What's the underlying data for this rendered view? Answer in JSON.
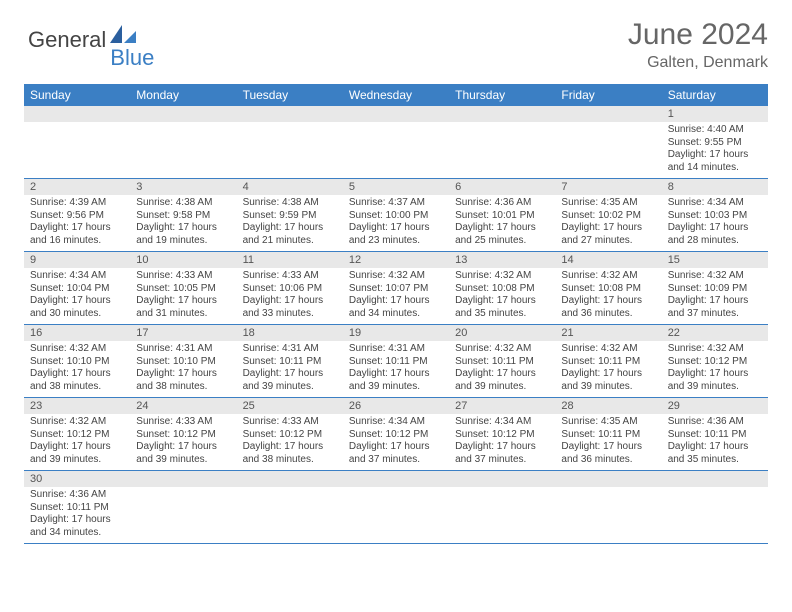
{
  "brand": {
    "part1": "General",
    "part2": "Blue"
  },
  "title": "June 2024",
  "location": "Galten, Denmark",
  "colors": {
    "header_bg": "#3b7fc4",
    "header_text": "#ffffff",
    "daynum_bg": "#e8e8e8",
    "cell_border": "#3b7fc4",
    "text": "#444444",
    "title_color": "#666666"
  },
  "weekdays": [
    "Sunday",
    "Monday",
    "Tuesday",
    "Wednesday",
    "Thursday",
    "Friday",
    "Saturday"
  ],
  "weeks": [
    {
      "days": [
        {
          "num": "",
          "sunrise": "",
          "sunset": "",
          "daylight": ""
        },
        {
          "num": "",
          "sunrise": "",
          "sunset": "",
          "daylight": ""
        },
        {
          "num": "",
          "sunrise": "",
          "sunset": "",
          "daylight": ""
        },
        {
          "num": "",
          "sunrise": "",
          "sunset": "",
          "daylight": ""
        },
        {
          "num": "",
          "sunrise": "",
          "sunset": "",
          "daylight": ""
        },
        {
          "num": "",
          "sunrise": "",
          "sunset": "",
          "daylight": ""
        },
        {
          "num": "1",
          "sunrise": "Sunrise: 4:40 AM",
          "sunset": "Sunset: 9:55 PM",
          "daylight": "Daylight: 17 hours and 14 minutes."
        }
      ]
    },
    {
      "days": [
        {
          "num": "2",
          "sunrise": "Sunrise: 4:39 AM",
          "sunset": "Sunset: 9:56 PM",
          "daylight": "Daylight: 17 hours and 16 minutes."
        },
        {
          "num": "3",
          "sunrise": "Sunrise: 4:38 AM",
          "sunset": "Sunset: 9:58 PM",
          "daylight": "Daylight: 17 hours and 19 minutes."
        },
        {
          "num": "4",
          "sunrise": "Sunrise: 4:38 AM",
          "sunset": "Sunset: 9:59 PM",
          "daylight": "Daylight: 17 hours and 21 minutes."
        },
        {
          "num": "5",
          "sunrise": "Sunrise: 4:37 AM",
          "sunset": "Sunset: 10:00 PM",
          "daylight": "Daylight: 17 hours and 23 minutes."
        },
        {
          "num": "6",
          "sunrise": "Sunrise: 4:36 AM",
          "sunset": "Sunset: 10:01 PM",
          "daylight": "Daylight: 17 hours and 25 minutes."
        },
        {
          "num": "7",
          "sunrise": "Sunrise: 4:35 AM",
          "sunset": "Sunset: 10:02 PM",
          "daylight": "Daylight: 17 hours and 27 minutes."
        },
        {
          "num": "8",
          "sunrise": "Sunrise: 4:34 AM",
          "sunset": "Sunset: 10:03 PM",
          "daylight": "Daylight: 17 hours and 28 minutes."
        }
      ]
    },
    {
      "days": [
        {
          "num": "9",
          "sunrise": "Sunrise: 4:34 AM",
          "sunset": "Sunset: 10:04 PM",
          "daylight": "Daylight: 17 hours and 30 minutes."
        },
        {
          "num": "10",
          "sunrise": "Sunrise: 4:33 AM",
          "sunset": "Sunset: 10:05 PM",
          "daylight": "Daylight: 17 hours and 31 minutes."
        },
        {
          "num": "11",
          "sunrise": "Sunrise: 4:33 AM",
          "sunset": "Sunset: 10:06 PM",
          "daylight": "Daylight: 17 hours and 33 minutes."
        },
        {
          "num": "12",
          "sunrise": "Sunrise: 4:32 AM",
          "sunset": "Sunset: 10:07 PM",
          "daylight": "Daylight: 17 hours and 34 minutes."
        },
        {
          "num": "13",
          "sunrise": "Sunrise: 4:32 AM",
          "sunset": "Sunset: 10:08 PM",
          "daylight": "Daylight: 17 hours and 35 minutes."
        },
        {
          "num": "14",
          "sunrise": "Sunrise: 4:32 AM",
          "sunset": "Sunset: 10:08 PM",
          "daylight": "Daylight: 17 hours and 36 minutes."
        },
        {
          "num": "15",
          "sunrise": "Sunrise: 4:32 AM",
          "sunset": "Sunset: 10:09 PM",
          "daylight": "Daylight: 17 hours and 37 minutes."
        }
      ]
    },
    {
      "days": [
        {
          "num": "16",
          "sunrise": "Sunrise: 4:32 AM",
          "sunset": "Sunset: 10:10 PM",
          "daylight": "Daylight: 17 hours and 38 minutes."
        },
        {
          "num": "17",
          "sunrise": "Sunrise: 4:31 AM",
          "sunset": "Sunset: 10:10 PM",
          "daylight": "Daylight: 17 hours and 38 minutes."
        },
        {
          "num": "18",
          "sunrise": "Sunrise: 4:31 AM",
          "sunset": "Sunset: 10:11 PM",
          "daylight": "Daylight: 17 hours and 39 minutes."
        },
        {
          "num": "19",
          "sunrise": "Sunrise: 4:31 AM",
          "sunset": "Sunset: 10:11 PM",
          "daylight": "Daylight: 17 hours and 39 minutes."
        },
        {
          "num": "20",
          "sunrise": "Sunrise: 4:32 AM",
          "sunset": "Sunset: 10:11 PM",
          "daylight": "Daylight: 17 hours and 39 minutes."
        },
        {
          "num": "21",
          "sunrise": "Sunrise: 4:32 AM",
          "sunset": "Sunset: 10:11 PM",
          "daylight": "Daylight: 17 hours and 39 minutes."
        },
        {
          "num": "22",
          "sunrise": "Sunrise: 4:32 AM",
          "sunset": "Sunset: 10:12 PM",
          "daylight": "Daylight: 17 hours and 39 minutes."
        }
      ]
    },
    {
      "days": [
        {
          "num": "23",
          "sunrise": "Sunrise: 4:32 AM",
          "sunset": "Sunset: 10:12 PM",
          "daylight": "Daylight: 17 hours and 39 minutes."
        },
        {
          "num": "24",
          "sunrise": "Sunrise: 4:33 AM",
          "sunset": "Sunset: 10:12 PM",
          "daylight": "Daylight: 17 hours and 39 minutes."
        },
        {
          "num": "25",
          "sunrise": "Sunrise: 4:33 AM",
          "sunset": "Sunset: 10:12 PM",
          "daylight": "Daylight: 17 hours and 38 minutes."
        },
        {
          "num": "26",
          "sunrise": "Sunrise: 4:34 AM",
          "sunset": "Sunset: 10:12 PM",
          "daylight": "Daylight: 17 hours and 37 minutes."
        },
        {
          "num": "27",
          "sunrise": "Sunrise: 4:34 AM",
          "sunset": "Sunset: 10:12 PM",
          "daylight": "Daylight: 17 hours and 37 minutes."
        },
        {
          "num": "28",
          "sunrise": "Sunrise: 4:35 AM",
          "sunset": "Sunset: 10:11 PM",
          "daylight": "Daylight: 17 hours and 36 minutes."
        },
        {
          "num": "29",
          "sunrise": "Sunrise: 4:36 AM",
          "sunset": "Sunset: 10:11 PM",
          "daylight": "Daylight: 17 hours and 35 minutes."
        }
      ]
    },
    {
      "days": [
        {
          "num": "30",
          "sunrise": "Sunrise: 4:36 AM",
          "sunset": "Sunset: 10:11 PM",
          "daylight": "Daylight: 17 hours and 34 minutes."
        },
        {
          "num": "",
          "sunrise": "",
          "sunset": "",
          "daylight": ""
        },
        {
          "num": "",
          "sunrise": "",
          "sunset": "",
          "daylight": ""
        },
        {
          "num": "",
          "sunrise": "",
          "sunset": "",
          "daylight": ""
        },
        {
          "num": "",
          "sunrise": "",
          "sunset": "",
          "daylight": ""
        },
        {
          "num": "",
          "sunrise": "",
          "sunset": "",
          "daylight": ""
        },
        {
          "num": "",
          "sunrise": "",
          "sunset": "",
          "daylight": ""
        }
      ]
    }
  ]
}
